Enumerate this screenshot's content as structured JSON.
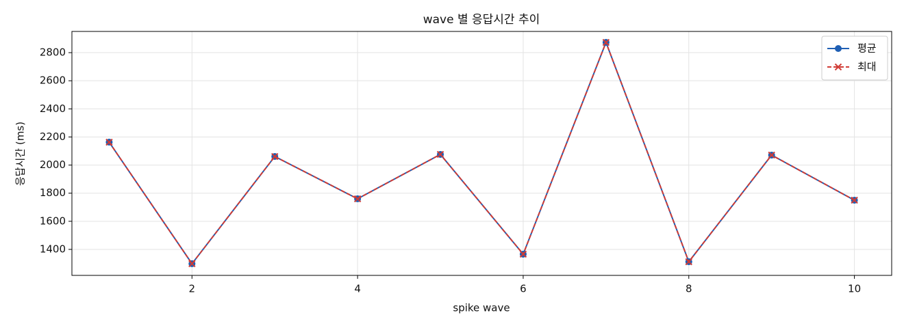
{
  "chart_data": {
    "type": "line",
    "title": "wave 별 응답시간 추이",
    "x_label": "spike wave",
    "y_label": "응답시간 (ms)",
    "x": [
      1,
      2,
      3,
      4,
      5,
      6,
      7,
      8,
      9,
      10
    ],
    "series": [
      {
        "name": "평균",
        "color": "#1f5fb4",
        "marker": "o",
        "linestyle": "solid",
        "values": [
          2163,
          1298,
          2061,
          1760,
          2076,
          1366,
          2873,
          1312,
          2071,
          1750
        ]
      },
      {
        "name": "최대",
        "color": "#d03b35",
        "marker": "x",
        "linestyle": "dashed",
        "values": [
          2163,
          1298,
          2061,
          1760,
          2076,
          1366,
          2873,
          1312,
          2071,
          1750
        ]
      }
    ],
    "xlim": [
      0.55,
      10.45
    ],
    "ylim": [
      1215,
      2951
    ],
    "xticks": [
      2,
      4,
      6,
      8,
      10
    ],
    "yticks": [
      1400,
      1600,
      1800,
      2000,
      2200,
      2400,
      2600,
      2800
    ],
    "grid": true,
    "legend": "upper right"
  }
}
